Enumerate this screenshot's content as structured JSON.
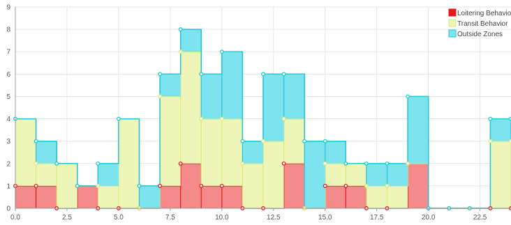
{
  "chart_data": {
    "type": "area",
    "step": true,
    "x": [
      0,
      1,
      2,
      3,
      4,
      5,
      6,
      7,
      8,
      9,
      10,
      11,
      12,
      13,
      14,
      15,
      16,
      17,
      18,
      19,
      20,
      21,
      22,
      23,
      24
    ],
    "series": [
      {
        "name": "Loitering Behavior",
        "color": "#e31a1c",
        "fill": "#f48a8a",
        "values": [
          1,
          1,
          0,
          1,
          0,
          0,
          0,
          1,
          2,
          1,
          1,
          0,
          0,
          2,
          0,
          1,
          1,
          0,
          0,
          2,
          0,
          0,
          0,
          0,
          0
        ]
      },
      {
        "name": "Transit Behavior",
        "color": "#d9ea7a",
        "fill": "#eef5b8",
        "values": [
          3,
          1,
          2,
          0,
          1,
          4,
          0,
          4,
          5,
          3,
          3,
          2,
          3,
          2,
          0,
          1,
          1,
          1,
          1,
          0,
          0,
          0,
          0,
          3,
          3
        ]
      },
      {
        "name": "Outside Zones",
        "color": "#25c5d6",
        "fill": "#7de3ef",
        "values": [
          0,
          1,
          0,
          0,
          1,
          0,
          1,
          1,
          1,
          2,
          3,
          1,
          3,
          2,
          3,
          1,
          0,
          1,
          1,
          3,
          0,
          0,
          0,
          1,
          1
        ]
      }
    ],
    "stacked": true,
    "xlim": [
      0,
      24
    ],
    "ylim": [
      0,
      9
    ],
    "x_ticks": [
      "0.0",
      "2.5",
      "5.0",
      "7.5",
      "10.0",
      "12.5",
      "15.0",
      "17.5",
      "20.0",
      "22.5"
    ],
    "y_ticks": [
      "0",
      "1",
      "2",
      "3",
      "4",
      "5",
      "6",
      "7",
      "8",
      "9"
    ],
    "grid": true,
    "legend_position": "top-right"
  }
}
